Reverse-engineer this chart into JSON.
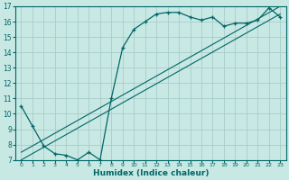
{
  "xlabel": "Humidex (Indice chaleur)",
  "ylabel": "",
  "xlim": [
    -0.5,
    23.5
  ],
  "ylim": [
    7,
    17
  ],
  "yticks": [
    7,
    8,
    9,
    10,
    11,
    12,
    13,
    14,
    15,
    16,
    17
  ],
  "xticks": [
    0,
    1,
    2,
    3,
    4,
    5,
    6,
    7,
    8,
    9,
    10,
    11,
    12,
    13,
    14,
    15,
    16,
    17,
    18,
    19,
    20,
    21,
    22,
    23
  ],
  "bg_color": "#c8e8e4",
  "line_color": "#006666",
  "grid_color": "#a8cccc",
  "curve1_x": [
    0,
    1,
    2,
    3,
    4,
    5,
    6,
    7,
    8,
    9,
    10,
    11,
    12,
    13,
    14,
    15,
    16,
    17,
    18,
    19,
    20,
    21,
    22,
    23
  ],
  "curve1_y": [
    10.5,
    9.2,
    7.9,
    7.4,
    7.3,
    7.0,
    7.5,
    7.0,
    11.0,
    14.3,
    15.5,
    16.0,
    16.5,
    16.6,
    16.6,
    16.3,
    16.1,
    16.3,
    15.7,
    15.9,
    15.9,
    16.1,
    16.9,
    16.3
  ],
  "line2_x": [
    0,
    23
  ],
  "line2_y": [
    7.5,
    17.0
  ],
  "line3_x": [
    0,
    23
  ],
  "line3_y": [
    7.0,
    16.5
  ]
}
